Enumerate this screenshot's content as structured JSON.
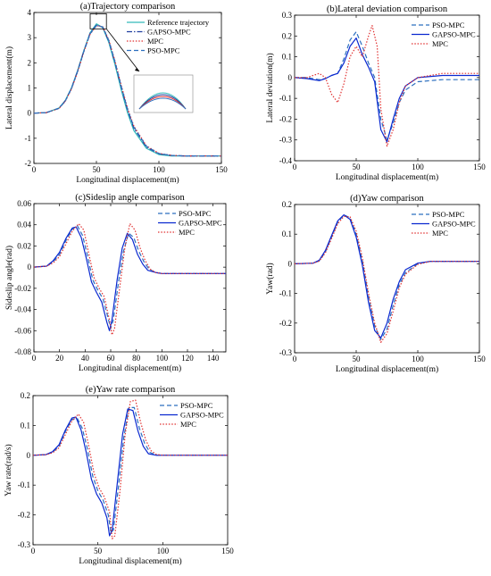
{
  "chart_data": [
    {
      "id": "a",
      "type": "line",
      "title": "(a)Trajectory comparison",
      "xlabel": "Longitudinal displacement(m)",
      "ylabel": "Lateral displacement(m)",
      "xlim": [
        0,
        150
      ],
      "ylim": [
        -2,
        4
      ],
      "xticks": [
        0,
        50,
        100,
        150
      ],
      "yticks": [
        -2,
        -1,
        0,
        1,
        2,
        3,
        4
      ],
      "legend_position": "top-right",
      "series": [
        {
          "name": "Reference trajectory",
          "color": "#33bbbb",
          "dash": "solid",
          "x": [
            0,
            10,
            20,
            25,
            30,
            35,
            40,
            45,
            50,
            55,
            60,
            65,
            70,
            75,
            80,
            90,
            100,
            110,
            120,
            150
          ],
          "y": [
            0,
            0.02,
            0.2,
            0.5,
            1.0,
            1.7,
            2.5,
            3.2,
            3.55,
            3.4,
            2.8,
            1.9,
            0.9,
            0.0,
            -0.7,
            -1.4,
            -1.65,
            -1.7,
            -1.7,
            -1.7
          ]
        },
        {
          "name": "GAPSO-MPC",
          "color": "#1f3f9f",
          "dash": "dashdot",
          "x": [
            0,
            10,
            20,
            25,
            30,
            35,
            40,
            45,
            50,
            55,
            60,
            65,
            70,
            75,
            80,
            90,
            100,
            110,
            120,
            150
          ],
          "y": [
            0,
            0.02,
            0.19,
            0.48,
            0.98,
            1.68,
            2.48,
            3.18,
            3.5,
            3.42,
            2.85,
            1.98,
            1.0,
            0.1,
            -0.6,
            -1.35,
            -1.62,
            -1.68,
            -1.7,
            -1.7
          ]
        },
        {
          "name": "MPC",
          "color": "#e03030",
          "dash": "dotted",
          "x": [
            0,
            10,
            20,
            25,
            30,
            35,
            40,
            45,
            50,
            55,
            60,
            65,
            70,
            75,
            80,
            90,
            100,
            110,
            120,
            150
          ],
          "y": [
            0,
            0.02,
            0.18,
            0.46,
            0.95,
            1.64,
            2.44,
            3.14,
            3.47,
            3.44,
            2.9,
            2.05,
            1.08,
            0.18,
            -0.52,
            -1.3,
            -1.6,
            -1.68,
            -1.7,
            -1.7
          ]
        },
        {
          "name": "PSO-MPC",
          "color": "#2c6fbf",
          "dash": "dashed",
          "x": [
            0,
            10,
            20,
            25,
            30,
            35,
            40,
            45,
            50,
            55,
            60,
            65,
            70,
            75,
            80,
            90,
            100,
            110,
            120,
            150
          ],
          "y": [
            0,
            0.02,
            0.19,
            0.47,
            0.97,
            1.66,
            2.46,
            3.16,
            3.48,
            3.43,
            2.88,
            2.02,
            1.04,
            0.14,
            -0.56,
            -1.32,
            -1.61,
            -1.68,
            -1.7,
            -1.7
          ]
        }
      ]
    },
    {
      "id": "b",
      "type": "line",
      "title": "(b)Lateral deviation comparison",
      "xlabel": "Longitudinal displacement(m)",
      "ylabel": "Lateral deviation(m)",
      "xlim": [
        0,
        150
      ],
      "ylim": [
        -0.4,
        0.3
      ],
      "xticks": [
        0,
        50,
        100,
        150
      ],
      "yticks": [
        -0.4,
        -0.3,
        -0.2,
        -0.1,
        0,
        0.1,
        0.2,
        0.3
      ],
      "legend_position": "top-right",
      "series": [
        {
          "name": "PSO-MPC",
          "color": "#2c6fbf",
          "dash": "dashed",
          "x": [
            0,
            10,
            20,
            25,
            30,
            35,
            40,
            45,
            50,
            55,
            60,
            65,
            70,
            75,
            80,
            85,
            90,
            100,
            120,
            150
          ],
          "y": [
            0,
            0,
            -0.01,
            -0.005,
            0.01,
            0.02,
            0.09,
            0.18,
            0.22,
            0.15,
            0.07,
            0.0,
            -0.2,
            -0.3,
            -0.22,
            -0.12,
            -0.06,
            -0.02,
            -0.01,
            -0.01
          ]
        },
        {
          "name": "GAPSO-MPC",
          "color": "#0a28d0",
          "dash": "solid",
          "x": [
            0,
            10,
            20,
            25,
            30,
            35,
            40,
            45,
            50,
            55,
            60,
            65,
            70,
            75,
            80,
            85,
            90,
            100,
            120,
            150
          ],
          "y": [
            0,
            -0.005,
            -0.015,
            -0.005,
            0.01,
            0.02,
            0.07,
            0.15,
            0.19,
            0.11,
            0.05,
            -0.02,
            -0.25,
            -0.31,
            -0.2,
            -0.1,
            -0.04,
            0.0,
            0.01,
            0.01
          ]
        },
        {
          "name": "MPC",
          "color": "#e03030",
          "dash": "dotted",
          "x": [
            0,
            10,
            15,
            20,
            25,
            30,
            35,
            40,
            45,
            50,
            55,
            60,
            63,
            67,
            70,
            75,
            80,
            85,
            90,
            100,
            120,
            150
          ],
          "y": [
            0,
            0,
            0.01,
            0.02,
            0.0,
            -0.08,
            -0.12,
            -0.03,
            0.1,
            0.15,
            0.1,
            0.2,
            0.25,
            0.15,
            -0.15,
            -0.33,
            -0.25,
            -0.12,
            -0.04,
            0.0,
            0.02,
            0.02
          ]
        }
      ]
    },
    {
      "id": "c",
      "type": "line",
      "title": "(c)Sideslip angle comparison",
      "xlabel": "Longitudinal displacement(m)",
      "ylabel": "Sideslip angle(rad)",
      "xlim": [
        0,
        150
      ],
      "ylim": [
        -0.08,
        0.06
      ],
      "xticks": [
        0,
        20,
        40,
        60,
        80,
        100,
        120,
        140
      ],
      "yticks": [
        -0.08,
        -0.06,
        -0.04,
        -0.02,
        0,
        0.02,
        0.04,
        0.06
      ],
      "legend_position": "top-right",
      "series": [
        {
          "name": "PSO-MPC",
          "color": "#2c6fbf",
          "dash": "dashed",
          "x": [
            0,
            10,
            15,
            20,
            25,
            30,
            34,
            38,
            42,
            46,
            50,
            54,
            58,
            60,
            62,
            66,
            70,
            74,
            78,
            82,
            86,
            90,
            95,
            100,
            110,
            120,
            150
          ],
          "y": [
            0,
            0.001,
            0.005,
            0.012,
            0.025,
            0.036,
            0.039,
            0.03,
            0.01,
            -0.012,
            -0.022,
            -0.03,
            -0.048,
            -0.058,
            -0.05,
            -0.015,
            0.015,
            0.032,
            0.028,
            0.015,
            0.005,
            -0.002,
            -0.005,
            -0.006,
            -0.006,
            -0.006,
            -0.006
          ]
        },
        {
          "name": "GAPSO-MPC",
          "color": "#0a28d0",
          "dash": "solid",
          "x": [
            0,
            10,
            15,
            20,
            25,
            30,
            33,
            37,
            41,
            45,
            49,
            53,
            57,
            59,
            61,
            65,
            69,
            73,
            77,
            81,
            85,
            89,
            95,
            100,
            110,
            120,
            150
          ],
          "y": [
            0,
            0.001,
            0.006,
            0.014,
            0.027,
            0.037,
            0.038,
            0.028,
            0.008,
            -0.014,
            -0.024,
            -0.033,
            -0.052,
            -0.06,
            -0.05,
            -0.012,
            0.018,
            0.032,
            0.026,
            0.012,
            0.003,
            -0.003,
            -0.005,
            -0.006,
            -0.006,
            -0.006,
            -0.006
          ]
        },
        {
          "name": "MPC",
          "color": "#e03030",
          "dash": "dotted",
          "x": [
            0,
            10,
            15,
            20,
            25,
            30,
            35,
            39,
            43,
            47,
            51,
            55,
            59,
            61,
            63,
            67,
            71,
            75,
            79,
            83,
            87,
            91,
            95,
            100,
            110,
            120,
            150
          ],
          "y": [
            0,
            0.001,
            0.004,
            0.01,
            0.022,
            0.034,
            0.041,
            0.035,
            0.012,
            -0.01,
            -0.02,
            -0.028,
            -0.05,
            -0.064,
            -0.058,
            -0.02,
            0.018,
            0.041,
            0.035,
            0.018,
            0.006,
            -0.002,
            -0.005,
            -0.006,
            -0.006,
            -0.006,
            -0.006
          ]
        }
      ]
    },
    {
      "id": "d",
      "type": "line",
      "title": "(d)Yaw comparison",
      "xlabel": "Longitudinal displacement(m)",
      "ylabel": "Yaw(rad)",
      "xlim": [
        0,
        150
      ],
      "ylim": [
        -0.3,
        0.2
      ],
      "xticks": [
        0,
        50,
        100,
        150
      ],
      "yticks": [
        -0.3,
        -0.2,
        -0.1,
        0,
        0.1,
        0.2
      ],
      "legend_position": "top-right",
      "series": [
        {
          "name": "PSO-MPC",
          "color": "#2c6fbf",
          "dash": "dashed",
          "x": [
            0,
            15,
            20,
            25,
            30,
            35,
            40,
            45,
            50,
            55,
            60,
            65,
            70,
            75,
            80,
            85,
            90,
            100,
            110,
            150
          ],
          "y": [
            0,
            0.002,
            0.01,
            0.04,
            0.09,
            0.14,
            0.165,
            0.155,
            0.1,
            0.01,
            -0.11,
            -0.21,
            -0.255,
            -0.22,
            -0.14,
            -0.07,
            -0.03,
            0.0,
            0.008,
            0.008
          ]
        },
        {
          "name": "GAPSO-MPC",
          "color": "#0a28d0",
          "dash": "solid",
          "x": [
            0,
            15,
            20,
            25,
            30,
            35,
            40,
            45,
            50,
            55,
            60,
            65,
            70,
            75,
            80,
            85,
            90,
            100,
            110,
            150
          ],
          "y": [
            0,
            0.002,
            0.012,
            0.045,
            0.095,
            0.145,
            0.165,
            0.15,
            0.09,
            -0.005,
            -0.13,
            -0.225,
            -0.25,
            -0.2,
            -0.12,
            -0.06,
            -0.02,
            0.002,
            0.008,
            0.008
          ]
        },
        {
          "name": "MPC",
          "color": "#e03030",
          "dash": "dotted",
          "x": [
            0,
            15,
            20,
            25,
            30,
            35,
            40,
            45,
            50,
            55,
            60,
            65,
            70,
            75,
            80,
            85,
            90,
            100,
            110,
            150
          ],
          "y": [
            0,
            0.002,
            0.009,
            0.037,
            0.085,
            0.135,
            0.16,
            0.158,
            0.11,
            0.02,
            -0.1,
            -0.2,
            -0.265,
            -0.235,
            -0.16,
            -0.08,
            -0.035,
            -0.002,
            0.008,
            0.008
          ]
        }
      ]
    },
    {
      "id": "e",
      "type": "line",
      "title": "(e)Yaw rate comparison",
      "xlabel": "Longitudinal displacement(m)",
      "ylabel": "Yaw rate(rad/s)",
      "xlim": [
        0,
        150
      ],
      "ylim": [
        -0.3,
        0.2
      ],
      "xticks": [
        0,
        50,
        100,
        150
      ],
      "yticks": [
        -0.3,
        -0.2,
        -0.1,
        0,
        0.1,
        0.2
      ],
      "legend_position": "top-right",
      "series": [
        {
          "name": "PSO-MPC",
          "color": "#2c6fbf",
          "dash": "dashed",
          "x": [
            0,
            10,
            15,
            20,
            25,
            30,
            34,
            38,
            42,
            46,
            50,
            54,
            58,
            60,
            62,
            66,
            70,
            74,
            78,
            82,
            86,
            90,
            95,
            100,
            110,
            120,
            150
          ],
          "y": [
            0,
            0.002,
            0.01,
            0.03,
            0.08,
            0.12,
            0.125,
            0.09,
            0.02,
            -0.07,
            -0.12,
            -0.15,
            -0.2,
            -0.26,
            -0.25,
            -0.1,
            0.06,
            0.16,
            0.16,
            0.09,
            0.04,
            0.01,
            0.0,
            0.0,
            0.0,
            0.0,
            0.0
          ]
        },
        {
          "name": "GAPSO-MPC",
          "color": "#0a28d0",
          "dash": "solid",
          "x": [
            0,
            10,
            15,
            20,
            25,
            30,
            33,
            37,
            41,
            45,
            49,
            53,
            57,
            59,
            61,
            65,
            69,
            73,
            77,
            81,
            85,
            89,
            95,
            100,
            110,
            120,
            150
          ],
          "y": [
            0,
            0.002,
            0.012,
            0.035,
            0.085,
            0.125,
            0.128,
            0.085,
            0.01,
            -0.08,
            -0.13,
            -0.16,
            -0.21,
            -0.27,
            -0.25,
            -0.09,
            0.07,
            0.155,
            0.15,
            0.08,
            0.03,
            0.005,
            0.0,
            0.0,
            0.0,
            0.0,
            0.0
          ]
        },
        {
          "name": "MPC",
          "color": "#e03030",
          "dash": "dotted",
          "x": [
            0,
            10,
            15,
            20,
            25,
            30,
            35,
            39,
            43,
            47,
            51,
            55,
            59,
            61,
            63,
            67,
            71,
            75,
            79,
            83,
            87,
            91,
            95,
            100,
            110,
            120,
            150
          ],
          "y": [
            0,
            0.002,
            0.008,
            0.025,
            0.07,
            0.115,
            0.138,
            0.11,
            0.03,
            -0.06,
            -0.11,
            -0.14,
            -0.19,
            -0.28,
            -0.27,
            -0.12,
            0.07,
            0.18,
            0.185,
            0.11,
            0.05,
            0.015,
            0.003,
            0.0,
            0.0,
            0.0,
            0.0
          ]
        }
      ]
    }
  ]
}
